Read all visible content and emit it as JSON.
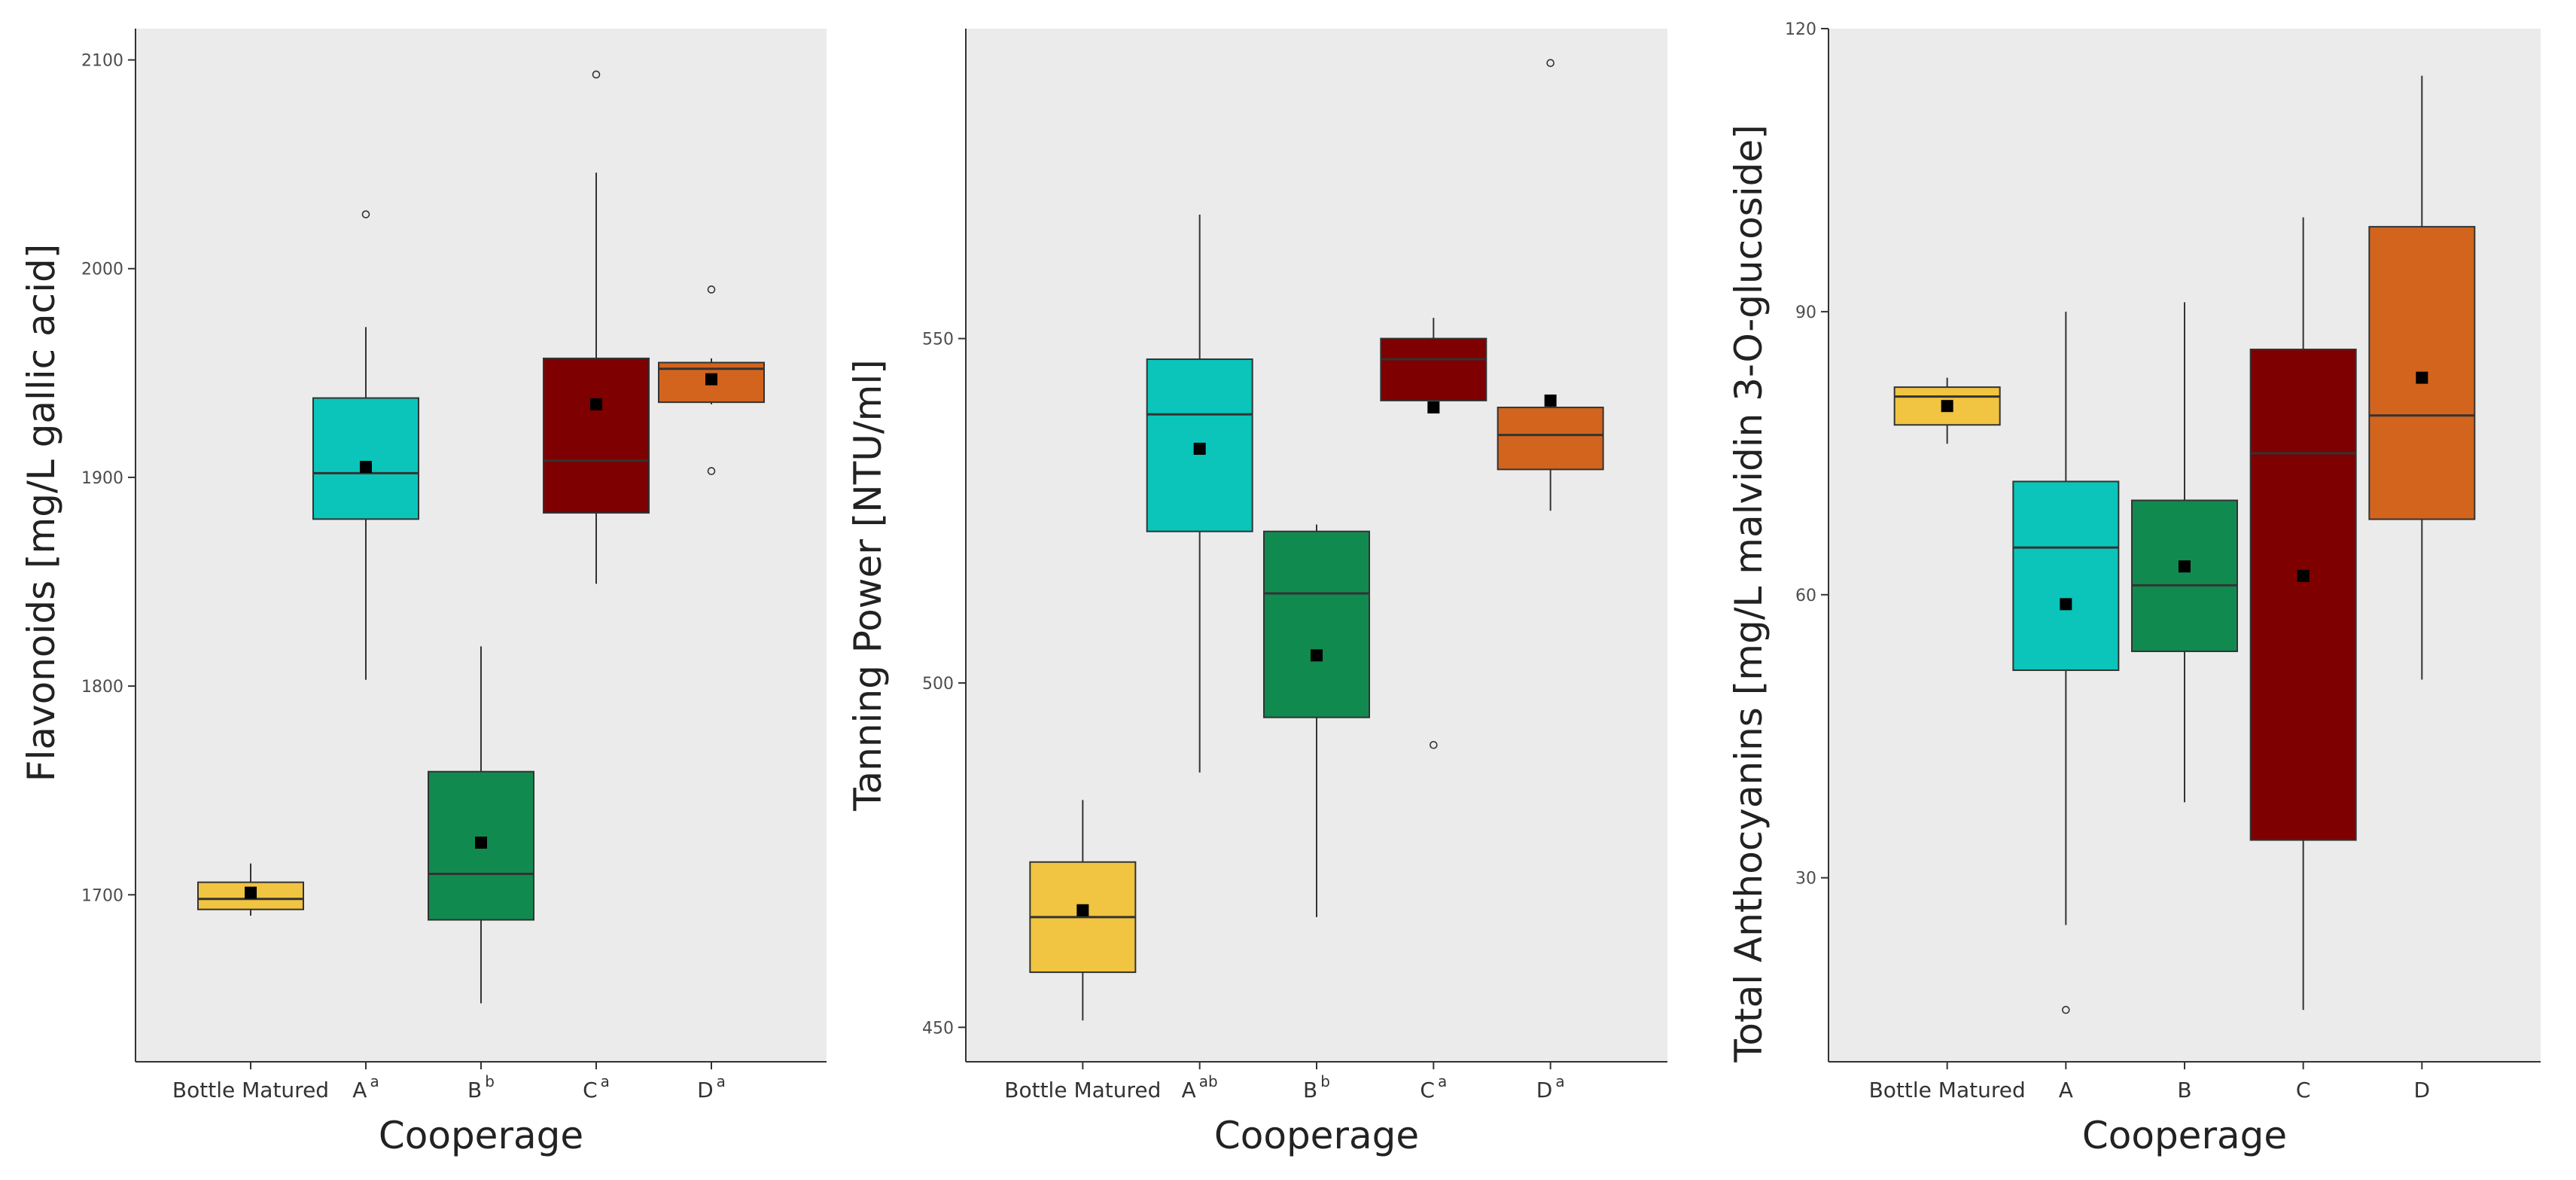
{
  "chart_data": [
    {
      "type": "box",
      "xlabel": "Cooperage",
      "ylabel": "Flavonoids [mg/L gallic acid]",
      "ylim": [
        1620,
        2115
      ],
      "yticks": [
        1700,
        1800,
        1900,
        2000,
        2100
      ],
      "ytick_labels": [
        "1700",
        "1800",
        "1900",
        "2000",
        "2100"
      ],
      "categories": [
        {
          "name": "Bottle Matured",
          "sup": "",
          "color": "#F1C441",
          "min": 1690,
          "q1": 1693,
          "median": 1698,
          "q3": 1706,
          "max": 1715,
          "mean": 1701,
          "outliers": []
        },
        {
          "name": "A",
          "sup": "a",
          "color": "#0BC5BA",
          "min": 1803,
          "q1": 1880,
          "median": 1902,
          "q3": 1938,
          "max": 1972,
          "mean": 1905,
          "outliers": [
            2026
          ]
        },
        {
          "name": "B",
          "sup": "b",
          "color": "#118A50",
          "min": 1648,
          "q1": 1688,
          "median": 1710,
          "q3": 1759,
          "max": 1819,
          "mean": 1725,
          "outliers": []
        },
        {
          "name": "C",
          "sup": "a",
          "color": "#7E0000",
          "min": 1849,
          "q1": 1883,
          "median": 1908,
          "q3": 1957,
          "max": 2046,
          "mean": 1935,
          "outliers": [
            2093
          ]
        },
        {
          "name": "D",
          "sup": "a",
          "color": "#D2641E",
          "min": 1935,
          "q1": 1936,
          "median": 1952,
          "q3": 1955,
          "max": 1957,
          "mean": 1947,
          "outliers": [
            1990,
            1903
          ]
        }
      ]
    },
    {
      "type": "box",
      "xlabel": "Cooperage",
      "ylabel": "Tanning Power [NTU/ml]",
      "ylim": [
        445,
        595
      ],
      "yticks": [
        450,
        500,
        550
      ],
      "ytick_labels": [
        "450",
        "500",
        "550"
      ],
      "categories": [
        {
          "name": "Bottle Matured",
          "sup": "",
          "color": "#F1C441",
          "min": 451,
          "q1": 458,
          "median": 466,
          "q3": 474,
          "max": 483,
          "mean": 467,
          "outliers": []
        },
        {
          "name": "A",
          "sup": "ab",
          "color": "#0BC5BA",
          "min": 487,
          "q1": 522,
          "median": 539,
          "q3": 547,
          "max": 568,
          "mean": 534,
          "outliers": []
        },
        {
          "name": "B",
          "sup": "b",
          "color": "#118A50",
          "min": 466,
          "q1": 495,
          "median": 513,
          "q3": 522,
          "max": 523,
          "mean": 504,
          "outliers": []
        },
        {
          "name": "C",
          "sup": "a",
          "color": "#7E0000",
          "min": 541,
          "q1": 541,
          "median": 547,
          "q3": 550,
          "max": 553,
          "mean": 540,
          "outliers": [
            491
          ]
        },
        {
          "name": "D",
          "sup": "a",
          "color": "#D2641E",
          "min": 525,
          "q1": 531,
          "median": 536,
          "q3": 540,
          "max": 541,
          "mean": 541,
          "outliers": [
            590
          ]
        }
      ]
    },
    {
      "type": "box",
      "xlabel": "Cooperage",
      "ylabel": "Total Anthocyanins [mg/L malvidin 3-O-glucoside]",
      "ylim": [
        10.5,
        120
      ],
      "yticks": [
        30,
        60,
        90,
        120
      ],
      "ytick_labels": [
        "30",
        "60",
        "90",
        "120"
      ],
      "categories": [
        {
          "name": "Bottle Matured",
          "sup": "",
          "color": "#F1C441",
          "min": 76,
          "q1": 78,
          "median": 81,
          "q3": 82,
          "max": 83,
          "mean": 80,
          "outliers": []
        },
        {
          "name": "A",
          "sup": "",
          "color": "#0BC5BA",
          "min": 25,
          "q1": 52,
          "median": 65,
          "q3": 72,
          "max": 90,
          "mean": 59,
          "outliers": [
            16
          ]
        },
        {
          "name": "B",
          "sup": "",
          "color": "#118A50",
          "min": 38,
          "q1": 54,
          "median": 61,
          "q3": 70,
          "max": 91,
          "mean": 63,
          "outliers": []
        },
        {
          "name": "C",
          "sup": "",
          "color": "#7E0000",
          "min": 16,
          "q1": 34,
          "median": 75,
          "q3": 86,
          "max": 100,
          "mean": 62,
          "outliers": []
        },
        {
          "name": "D",
          "sup": "",
          "color": "#D2641E",
          "min": 51,
          "q1": 68,
          "median": 79,
          "q3": 99,
          "max": 115,
          "mean": 83,
          "outliers": []
        }
      ]
    }
  ]
}
